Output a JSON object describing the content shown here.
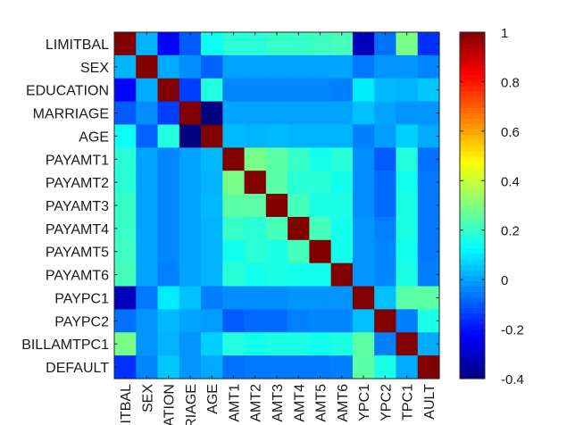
{
  "chart_data": {
    "type": "heatmap",
    "title": "",
    "xlabel": "",
    "ylabel": "",
    "labels": [
      "LIMITBAL",
      "SEX",
      "EDUCATION",
      "MARRIAGE",
      "AGE",
      "PAYAMT1",
      "PAYAMT2",
      "PAYAMT3",
      "PAYAMT4",
      "PAYAMT5",
      "PAYAMT6",
      "PAYPC1",
      "PAYPC2",
      "BILLAMTPC1",
      "DEFAULT"
    ],
    "x_tick_labels_visible": [
      "ITBAL",
      "SEX",
      "ATION",
      "RIAGE",
      "AGE",
      "AMT1",
      "AMT2",
      "AMT3",
      "AMT4",
      "AMT5",
      "AMT6",
      "YPC1",
      "YPC2",
      "TPC1",
      "AULT"
    ],
    "matrix": [
      [
        1.0,
        0.02,
        -0.22,
        -0.1,
        0.14,
        0.18,
        0.18,
        0.2,
        0.2,
        0.21,
        0.22,
        -0.32,
        -0.07,
        0.29,
        -0.16
      ],
      [
        0.02,
        1.0,
        0.01,
        -0.03,
        -0.09,
        0.0,
        0.0,
        0.0,
        0.0,
        0.0,
        0.0,
        -0.06,
        -0.02,
        -0.02,
        -0.04
      ],
      [
        -0.22,
        0.01,
        1.0,
        -0.14,
        0.17,
        -0.04,
        -0.04,
        -0.04,
        -0.04,
        -0.04,
        -0.05,
        0.1,
        0.03,
        0.02,
        0.05
      ],
      [
        -0.1,
        -0.03,
        -0.14,
        1.0,
        -0.41,
        0.0,
        0.0,
        0.0,
        0.0,
        0.0,
        0.0,
        0.04,
        0.0,
        -0.02,
        -0.02
      ],
      [
        0.14,
        -0.09,
        0.17,
        -0.41,
        1.0,
        0.03,
        0.02,
        0.03,
        0.02,
        0.02,
        0.02,
        -0.05,
        -0.01,
        0.06,
        0.01
      ],
      [
        0.18,
        0.0,
        -0.04,
        0.0,
        0.03,
        1.0,
        0.29,
        0.25,
        0.2,
        0.15,
        0.18,
        -0.03,
        -0.1,
        0.17,
        -0.07
      ],
      [
        0.18,
        0.0,
        -0.04,
        0.0,
        0.02,
        0.29,
        1.0,
        0.25,
        0.18,
        0.18,
        0.15,
        -0.03,
        -0.08,
        0.15,
        -0.06
      ],
      [
        0.2,
        0.0,
        -0.04,
        0.0,
        0.03,
        0.25,
        0.25,
        1.0,
        0.22,
        0.16,
        0.16,
        -0.03,
        -0.08,
        0.16,
        -0.06
      ],
      [
        0.2,
        0.0,
        -0.04,
        0.0,
        0.02,
        0.2,
        0.18,
        0.22,
        1.0,
        0.22,
        0.15,
        -0.02,
        -0.05,
        0.16,
        -0.06
      ],
      [
        0.21,
        0.0,
        -0.04,
        0.0,
        0.02,
        0.15,
        0.18,
        0.16,
        0.22,
        1.0,
        0.15,
        -0.02,
        -0.04,
        0.15,
        -0.06
      ],
      [
        0.22,
        0.0,
        -0.05,
        0.0,
        0.02,
        0.18,
        0.15,
        0.16,
        0.15,
        0.15,
        1.0,
        -0.02,
        -0.04,
        0.16,
        -0.05
      ],
      [
        -0.32,
        -0.06,
        0.1,
        0.04,
        -0.05,
        -0.03,
        -0.03,
        -0.03,
        -0.02,
        -0.02,
        -0.02,
        1.0,
        0.04,
        0.25,
        0.25
      ],
      [
        -0.07,
        -0.02,
        0.03,
        0.0,
        -0.01,
        -0.1,
        -0.08,
        -0.08,
        -0.05,
        -0.04,
        -0.04,
        0.04,
        1.0,
        -0.05,
        0.16
      ],
      [
        0.29,
        -0.02,
        0.02,
        -0.02,
        0.06,
        0.17,
        0.15,
        0.16,
        0.16,
        0.15,
        0.16,
        0.25,
        -0.05,
        1.0,
        0.01
      ],
      [
        -0.16,
        -0.04,
        0.05,
        -0.02,
        0.01,
        -0.07,
        -0.06,
        -0.06,
        -0.06,
        -0.06,
        -0.05,
        0.25,
        0.16,
        0.01,
        1.0
      ]
    ],
    "colormap": "jet",
    "colorbar": {
      "min": -0.4,
      "max": 1.0,
      "ticks": [
        -0.4,
        -0.2,
        0,
        0.2,
        0.4,
        0.6,
        0.8,
        1
      ],
      "tick_labels": [
        "-0.4",
        "-0.2",
        "0",
        "0.2",
        "0.4",
        "0.6",
        "0.8",
        "1"
      ]
    },
    "grid": false,
    "legend": "colorbar-right"
  }
}
